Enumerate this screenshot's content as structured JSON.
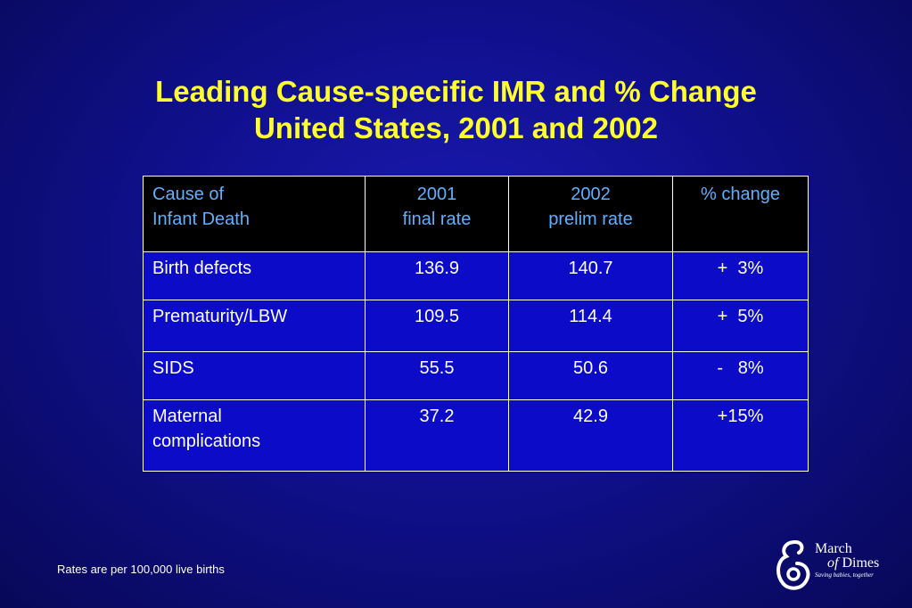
{
  "title": {
    "line1": "Leading Cause-specific IMR and % Change",
    "line2": "United States, 2001 and 2002"
  },
  "table": {
    "headers": [
      {
        "line1": "Cause of",
        "line2": "Infant Death"
      },
      {
        "line1": "2001",
        "line2": "final rate"
      },
      {
        "line1": "2002",
        "line2": "prelim rate"
      },
      {
        "line1": "% change",
        "line2": ""
      }
    ],
    "rows": [
      {
        "cause_line1": "Birth defects",
        "cause_line2": "",
        "rate_2001": "136.9",
        "rate_2002": "140.7",
        "change": "+  3%"
      },
      {
        "cause_line1": "Prematurity/LBW",
        "cause_line2": "",
        "rate_2001": "109.5",
        "rate_2002": "114.4",
        "change": "+  5%"
      },
      {
        "cause_line1": "SIDS",
        "cause_line2": "",
        "rate_2001": "55.5",
        "rate_2002": "50.6",
        "change": "-   8%"
      },
      {
        "cause_line1": "Maternal",
        "cause_line2": "complications",
        "rate_2001": "37.2",
        "rate_2002": "42.9",
        "change": "+15%"
      }
    ]
  },
  "footnote": "Rates are per 100,000 live births",
  "logo": {
    "icon": "mother-child-icon",
    "line1": "March",
    "line2_prefix": "of",
    "line2_suffix": " Dimes",
    "tagline": "Saving babies, together"
  },
  "colors": {
    "background": "#10108e",
    "title": "#ffff2e",
    "header_bg": "#000000",
    "header_text": "#5fb0ff",
    "body_bg": "#0b0bc8",
    "body_text": "#ffffff"
  }
}
